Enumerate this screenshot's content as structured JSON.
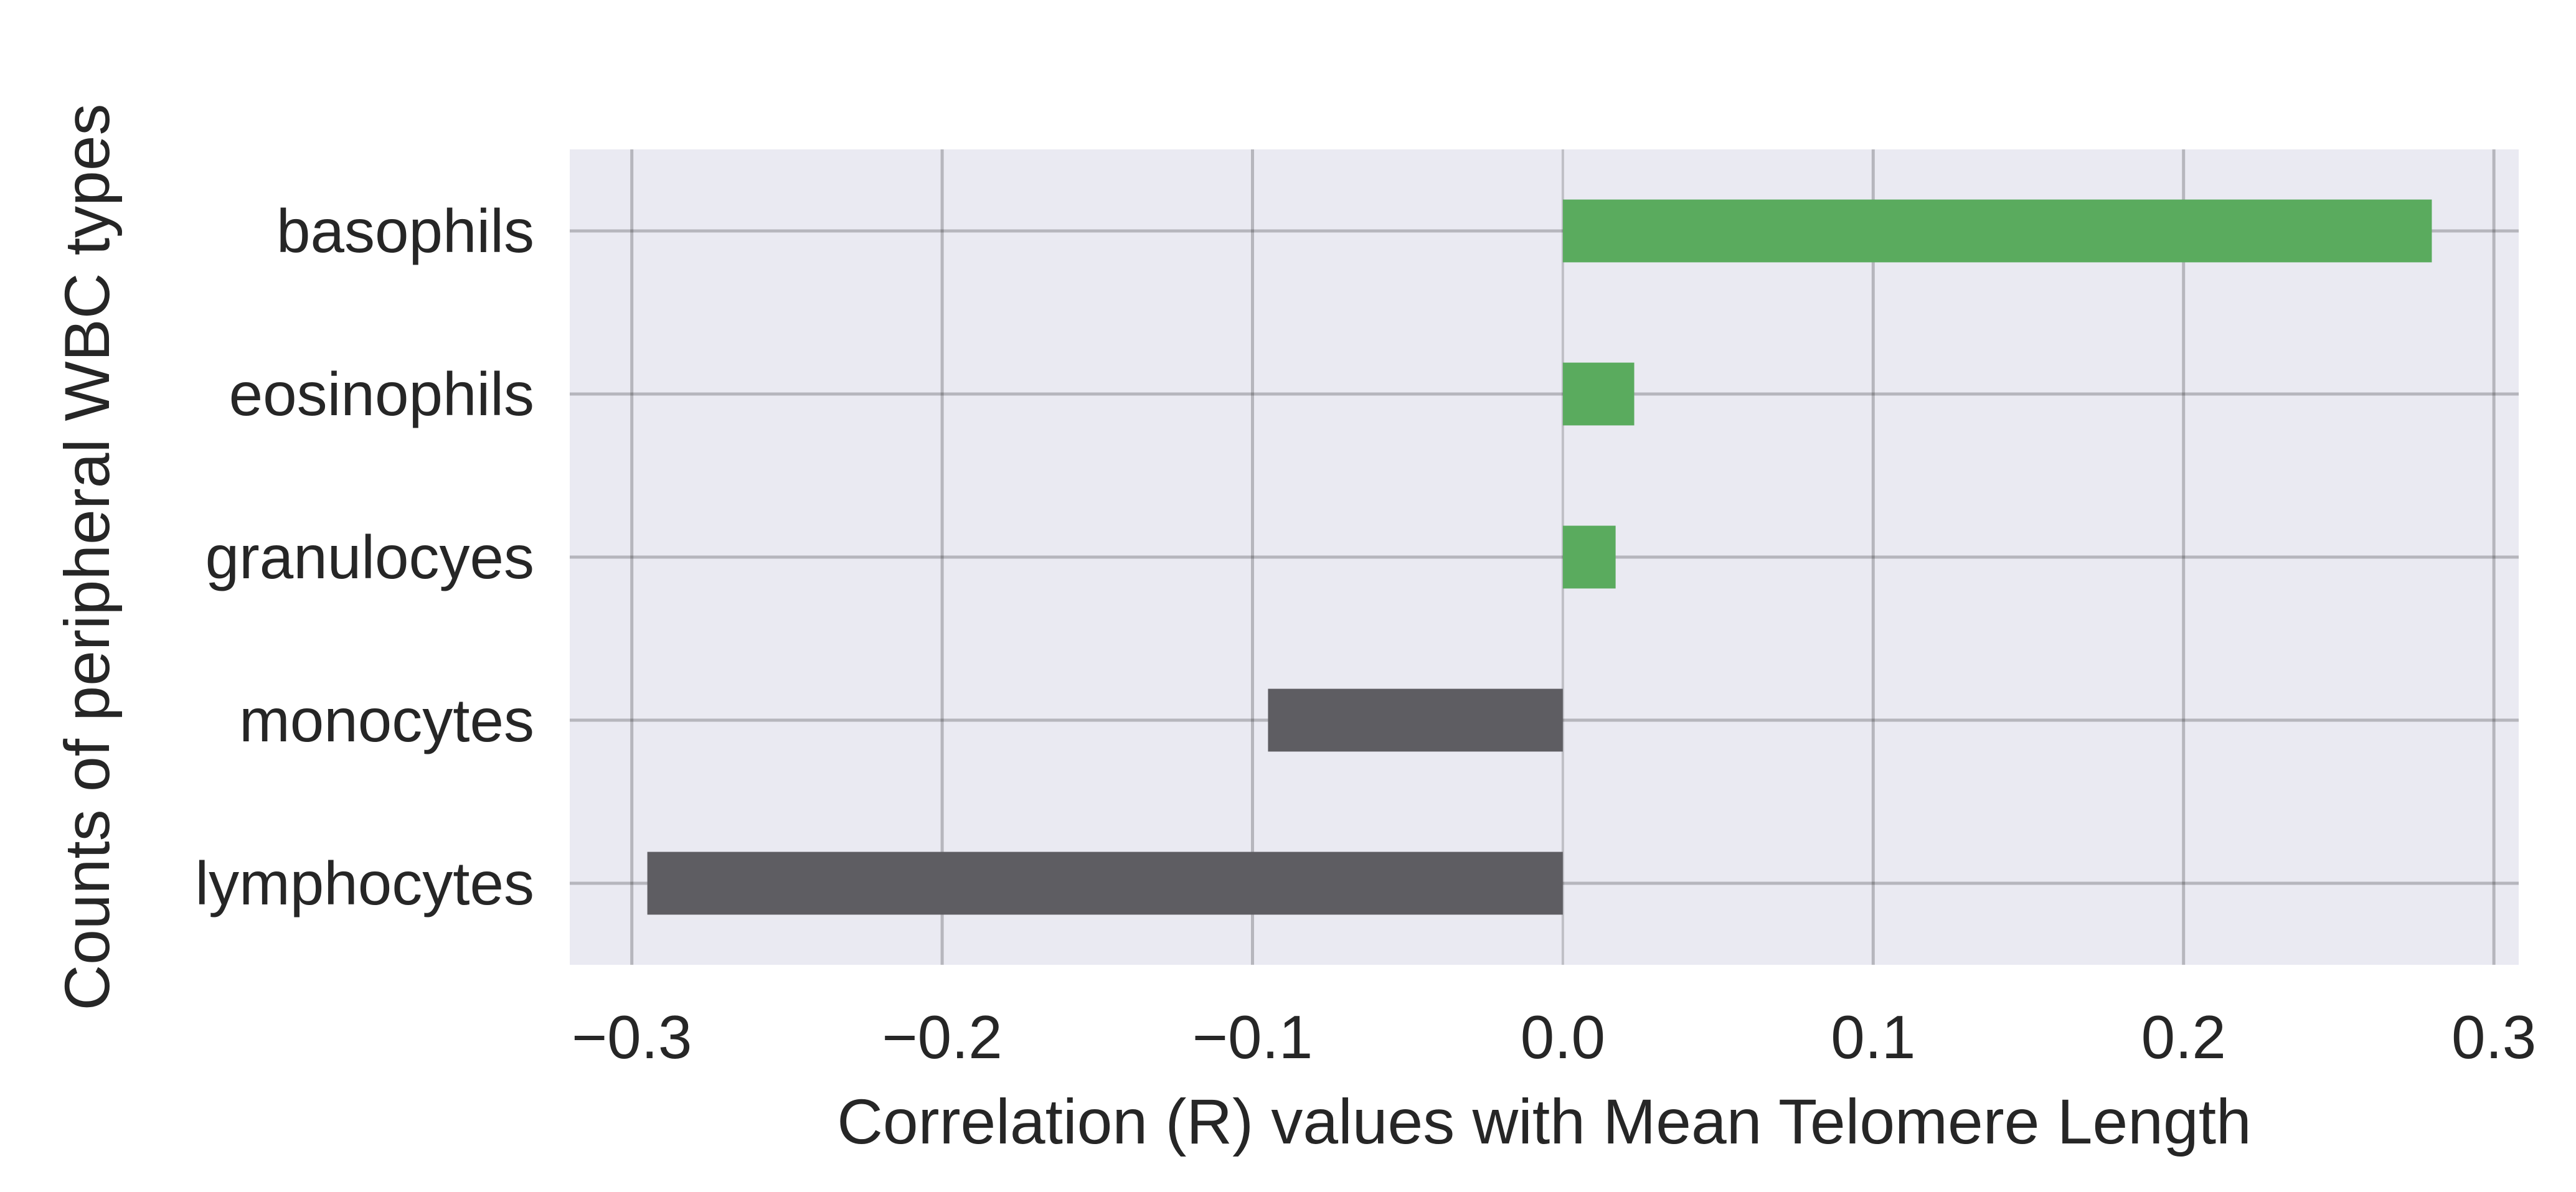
{
  "chart_data": {
    "type": "bar",
    "orientation": "horizontal",
    "categories": [
      "basophils",
      "eosinophils",
      "granulocyes",
      "monocytes",
      "lymphocytes"
    ],
    "values": [
      0.28,
      0.023,
      0.017,
      -0.095,
      -0.295
    ],
    "xlabel": "Correlation (R) values with Mean Telomere Length",
    "ylabel": "Counts of peripheral WBC types",
    "xlim": [
      -0.32,
      0.308
    ],
    "xticks": [
      -0.3,
      -0.2,
      -0.1,
      0.0,
      0.1,
      0.2,
      0.3
    ],
    "xtick_labels": [
      "−0.3",
      "−0.2",
      "−0.1",
      "0.0",
      "0.1",
      "0.2",
      "0.3"
    ],
    "grid": true,
    "legend": "none",
    "colors": {
      "positive": "#5aab5e",
      "negative": "#5e5d62",
      "plot_background": "#eaeaf2",
      "text": "#262626"
    }
  }
}
